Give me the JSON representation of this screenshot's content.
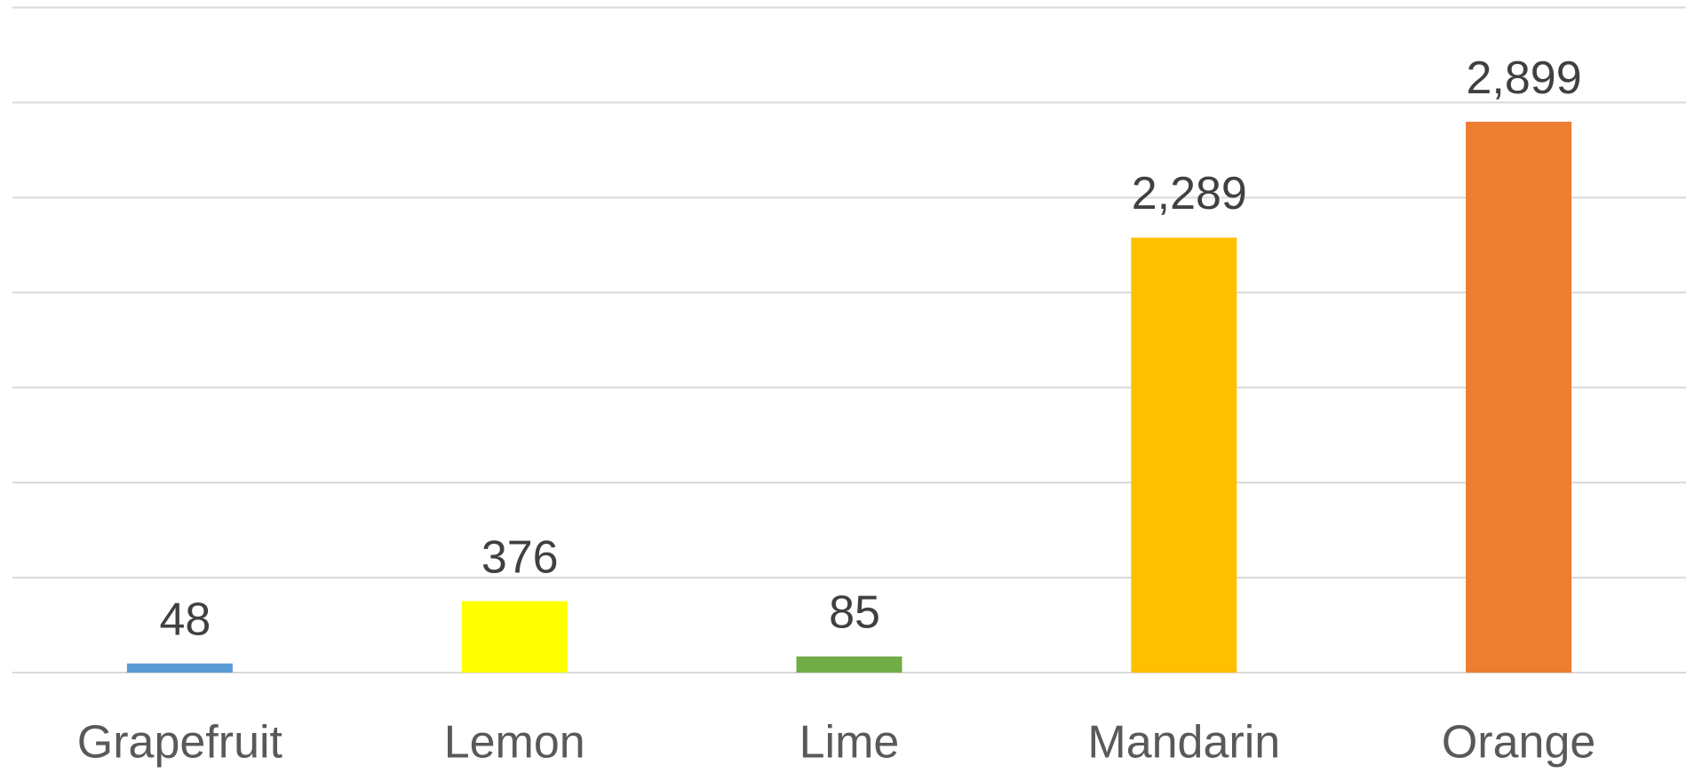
{
  "chart_data": {
    "type": "bar",
    "categories": [
      "Grapefruit",
      "Lemon",
      "Lime",
      "Mandarin",
      "Orange"
    ],
    "values": [
      48,
      376,
      85,
      2289,
      2899
    ],
    "value_labels": [
      "48",
      "376",
      "85",
      "2,289",
      "2,899"
    ],
    "colors": [
      "#5b9bd5",
      "#ffff00",
      "#70ad47",
      "#ffc000",
      "#ed7d31"
    ],
    "ylim": [
      0,
      3500
    ],
    "yticks": [
      0,
      500,
      1000,
      1500,
      2000,
      2500,
      3000,
      3500
    ],
    "grid": true
  }
}
